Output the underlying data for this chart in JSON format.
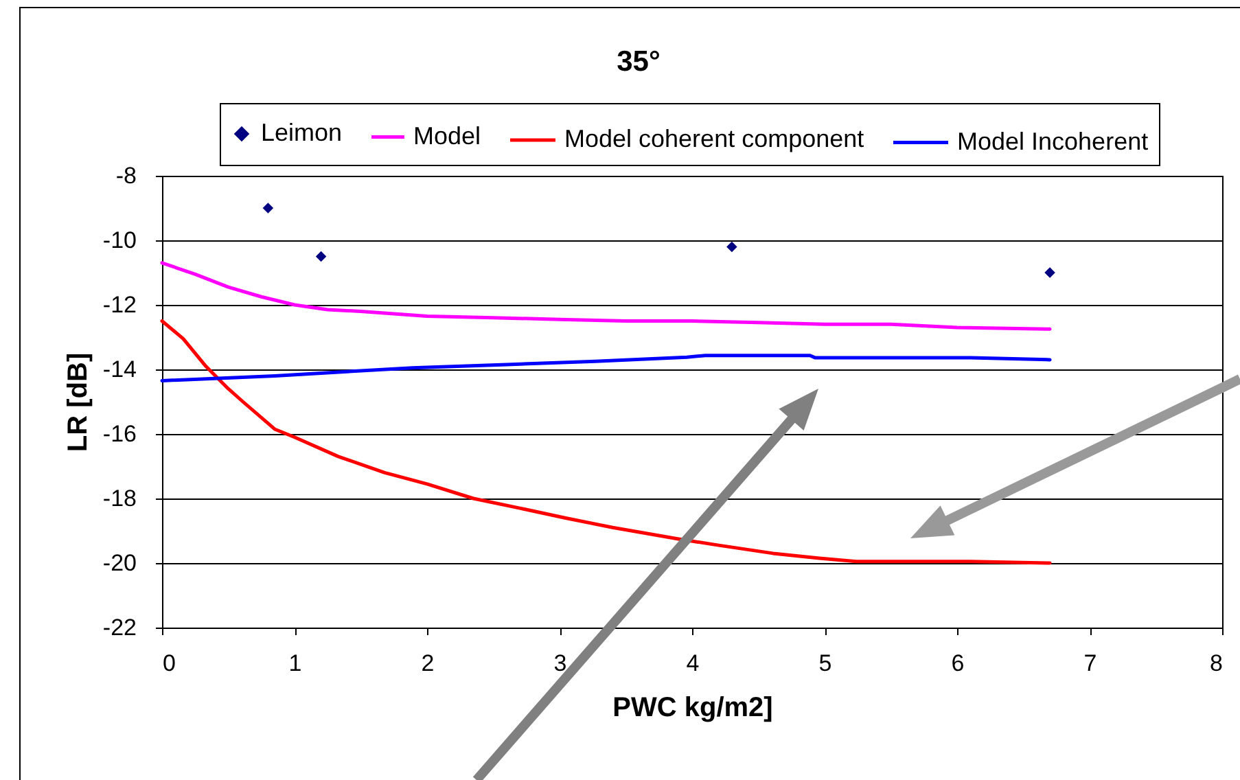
{
  "chart_data": {
    "type": "line",
    "title": "35°",
    "xlabel": "PWC kg/m2]",
    "ylabel": "LR [dB]",
    "xlim": [
      0,
      8
    ],
    "ylim": [
      -22,
      -8
    ],
    "xticks": [
      0,
      1,
      2,
      3,
      4,
      5,
      6,
      7,
      8
    ],
    "yticks": [
      -22,
      -20,
      -18,
      -16,
      -14,
      -12,
      -10,
      -8
    ],
    "grid": "y",
    "legend": "top",
    "series": [
      {
        "name": "Leimon",
        "type": "scatter",
        "marker": "diamond",
        "color": "#000080",
        "x": [
          0.8,
          1.2,
          4.3,
          6.7
        ],
        "values": [
          -9,
          -10.5,
          -10.2,
          -11
        ]
      },
      {
        "name": "Model",
        "type": "line",
        "color": "#ff00ff",
        "x": [
          0,
          0.25,
          0.5,
          0.75,
          1,
          1.25,
          1.5,
          2,
          2.5,
          3,
          3.5,
          4,
          4.5,
          5,
          5.5,
          6,
          6.7
        ],
        "values": [
          -10.7,
          -11.05,
          -11.45,
          -11.75,
          -12.0,
          -12.15,
          -12.2,
          -12.35,
          -12.4,
          -12.45,
          -12.5,
          -12.5,
          -12.55,
          -12.6,
          -12.6,
          -12.7,
          -12.75
        ]
      },
      {
        "name": "Model coherent component",
        "type": "line",
        "color": "#ff0000",
        "x": [
          0,
          0.16,
          0.33,
          0.5,
          0.61,
          0.85,
          1.0,
          1.33,
          1.68,
          2,
          2.35,
          2.7,
          3.04,
          3.4,
          3.89,
          4.2,
          4.61,
          4.96,
          5.24,
          6.1,
          6.7
        ],
        "values": [
          -12.5,
          -13.05,
          -13.9,
          -14.6,
          -15.0,
          -15.85,
          -16.1,
          -16.7,
          -17.2,
          -17.55,
          -18.0,
          -18.3,
          -18.6,
          -18.9,
          -19.25,
          -19.45,
          -19.7,
          -19.85,
          -19.95,
          -19.95,
          -20.0
        ]
      },
      {
        "name": "Model Incoherent",
        "type": "line",
        "color": "#0000ff",
        "x": [
          0,
          0.85,
          1.89,
          2.6,
          3.27,
          3.96,
          4.1,
          4.89,
          4.93,
          6.1,
          6.7
        ],
        "values": [
          -14.35,
          -14.2,
          -13.95,
          -13.85,
          -13.75,
          -13.62,
          -13.57,
          -13.57,
          -13.64,
          -13.64,
          -13.7
        ]
      }
    ]
  }
}
